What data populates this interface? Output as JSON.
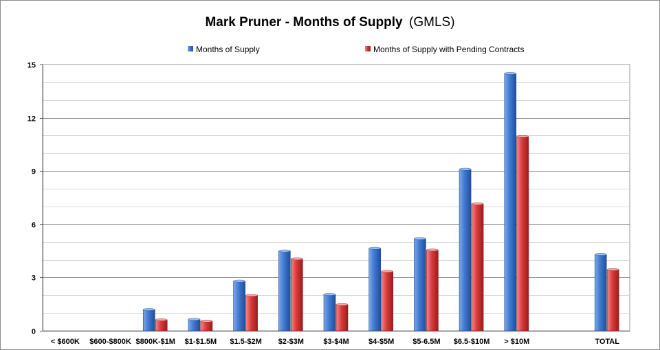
{
  "chart_data": {
    "type": "bar",
    "title": "Mark Pruner - Months of Supply",
    "subtitle": "(GMLS)",
    "xlabel": "",
    "ylabel": "",
    "ylim": [
      0,
      15
    ],
    "yticks": [
      0,
      3,
      6,
      9,
      12,
      15
    ],
    "grid": true,
    "legend_position": "top",
    "categories": [
      "< $600K",
      "$600-$800K",
      "$800K-$1M",
      "$1-$1.5M",
      "$1.5-$2M",
      "$2-$3M",
      "$3-$4M",
      "$4-$5M",
      "$5-6.5M",
      "$6.5-$10M",
      "> $10M",
      "",
      "TOTAL"
    ],
    "series": [
      {
        "name": "Months of Supply",
        "color": "#3a74c9",
        "values": [
          0,
          0,
          1.2,
          0.65,
          2.8,
          4.5,
          2.05,
          4.65,
          5.2,
          9.1,
          14.5,
          null,
          4.3
        ]
      },
      {
        "name": "Months of Supply with Pending Contracts",
        "color": "#d63b3b",
        "values": [
          0,
          0,
          0.62,
          0.55,
          2.0,
          4.05,
          1.48,
          3.35,
          4.55,
          7.15,
          10.95,
          null,
          3.45
        ]
      }
    ]
  }
}
